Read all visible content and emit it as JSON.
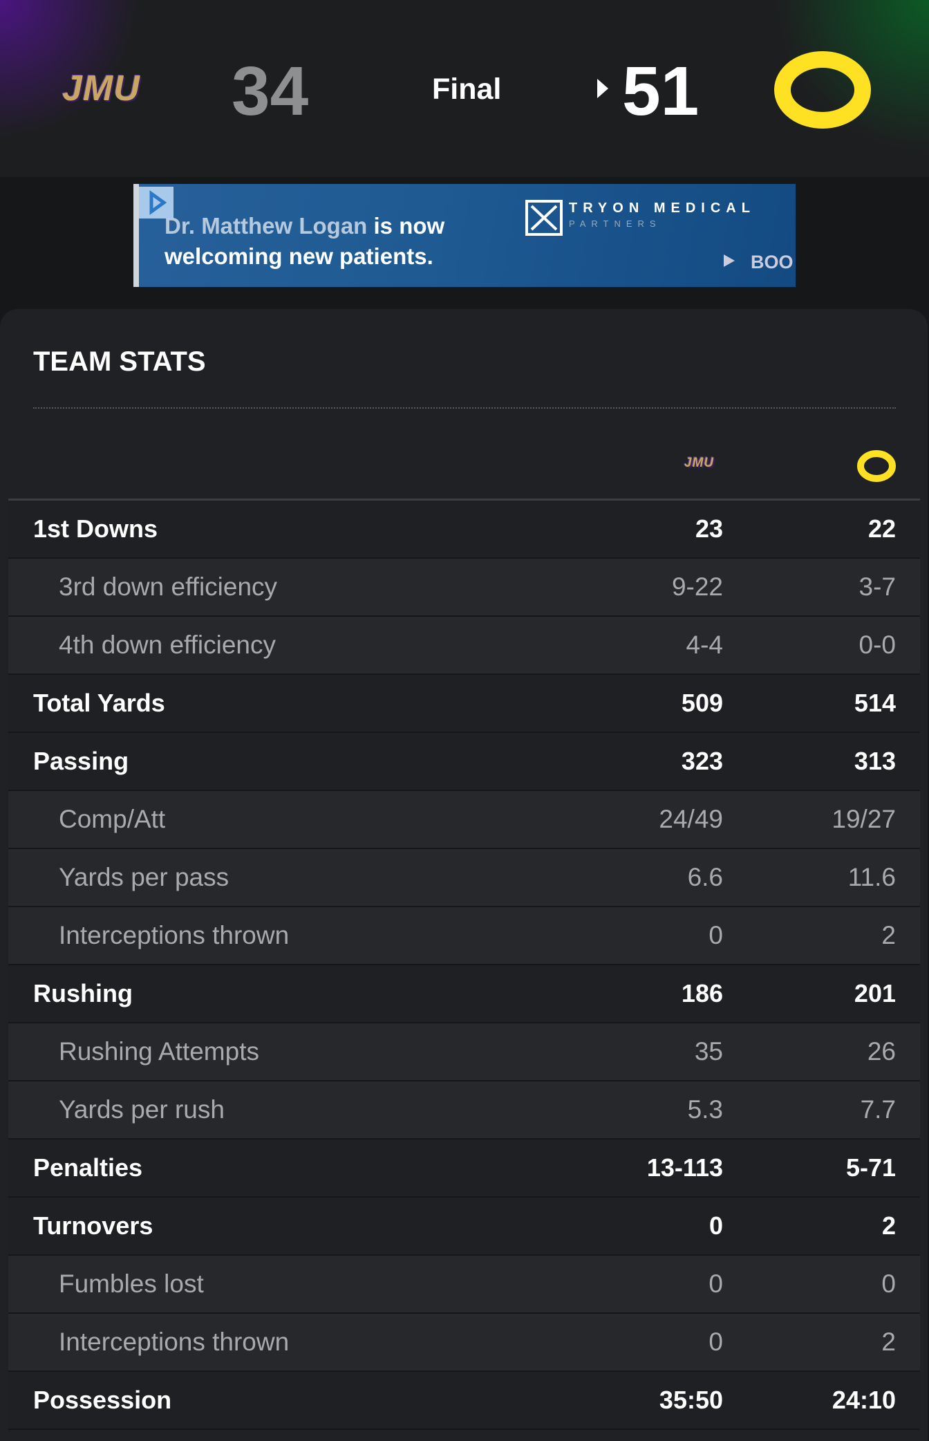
{
  "header": {
    "away": {
      "logo": "JMU",
      "score": 34
    },
    "status": "Final",
    "home": {
      "score": 51
    }
  },
  "ad": {
    "line1a": "Dr. Matthew Logan",
    "line1b": "is now",
    "line2": "welcoming new patients.",
    "brand": "TRYON MEDICAL",
    "brand_sub": "PARTNERS",
    "cta": "BOO"
  },
  "team_stats": {
    "title": "TEAM STATS",
    "away_logo": "JMU",
    "rows": [
      {
        "label": "1st Downs",
        "away": "23",
        "home": "22",
        "sub": false
      },
      {
        "label": "3rd down efficiency",
        "away": "9-22",
        "home": "3-7",
        "sub": true
      },
      {
        "label": "4th down efficiency",
        "away": "4-4",
        "home": "0-0",
        "sub": true
      },
      {
        "label": "Total Yards",
        "away": "509",
        "home": "514",
        "sub": false
      },
      {
        "label": "Passing",
        "away": "323",
        "home": "313",
        "sub": false
      },
      {
        "label": "Comp/Att",
        "away": "24/49",
        "home": "19/27",
        "sub": true
      },
      {
        "label": "Yards per pass",
        "away": "6.6",
        "home": "11.6",
        "sub": true
      },
      {
        "label": "Interceptions thrown",
        "away": "0",
        "home": "2",
        "sub": true
      },
      {
        "label": "Rushing",
        "away": "186",
        "home": "201",
        "sub": false
      },
      {
        "label": "Rushing Attempts",
        "away": "35",
        "home": "26",
        "sub": true
      },
      {
        "label": "Yards per rush",
        "away": "5.3",
        "home": "7.7",
        "sub": true
      },
      {
        "label": "Penalties",
        "away": "13-113",
        "home": "5-71",
        "sub": false
      },
      {
        "label": "Turnovers",
        "away": "0",
        "home": "2",
        "sub": false
      },
      {
        "label": "Fumbles lost",
        "away": "0",
        "home": "0",
        "sub": true
      },
      {
        "label": "Interceptions thrown",
        "away": "0",
        "home": "2",
        "sub": true
      },
      {
        "label": "Possession",
        "away": "35:50",
        "home": "24:10",
        "sub": false
      }
    ]
  }
}
